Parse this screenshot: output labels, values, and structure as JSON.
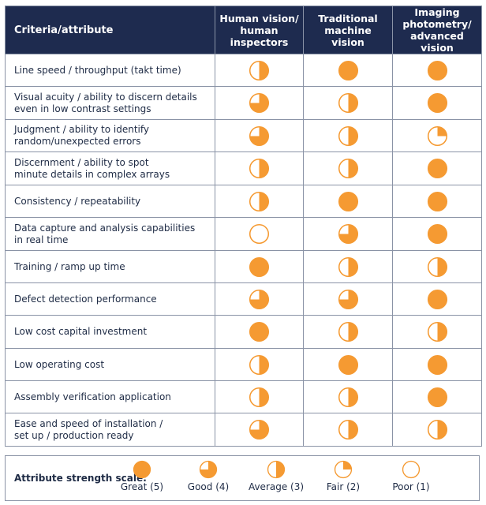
{
  "chart_data": {
    "type": "table",
    "header": {
      "criteria": "Criteria/attribute",
      "columns": [
        [
          "Human vision/",
          "human",
          "inspectors"
        ],
        [
          "Traditional",
          "machine",
          "vision"
        ],
        [
          "Imaging",
          "photometry/",
          "advanced vision"
        ]
      ]
    },
    "rows": [
      {
        "criteria": [
          "Line speed / throughput (takt time)"
        ],
        "scores": [
          3,
          5,
          5
        ]
      },
      {
        "criteria": [
          "Visual acuity / ability to discern details",
          "even in low contrast settings"
        ],
        "scores": [
          4,
          3,
          5
        ]
      },
      {
        "criteria": [
          "Judgment / ability to identify",
          "random/unexpected errors"
        ],
        "scores": [
          4,
          3,
          2
        ]
      },
      {
        "criteria": [
          "Discernment / ability to spot",
          "minute details in complex arrays"
        ],
        "scores": [
          3,
          3,
          5
        ]
      },
      {
        "criteria": [
          "Consistency / repeatability"
        ],
        "scores": [
          3,
          5,
          5
        ]
      },
      {
        "criteria": [
          "Data capture and analysis capabilities",
          "in real time"
        ],
        "scores": [
          1,
          4,
          5
        ]
      },
      {
        "criteria": [
          "Training / ramp up time"
        ],
        "scores": [
          5,
          3,
          3
        ]
      },
      {
        "criteria": [
          "Defect detection performance"
        ],
        "scores": [
          4,
          4,
          5
        ]
      },
      {
        "criteria": [
          "Low cost capital investment"
        ],
        "scores": [
          5,
          3,
          3
        ]
      },
      {
        "criteria": [
          "Low operating cost"
        ],
        "scores": [
          3,
          5,
          5
        ]
      },
      {
        "criteria": [
          "Assembly verification application"
        ],
        "scores": [
          3,
          3,
          5
        ]
      },
      {
        "criteria": [
          "Ease and speed of installation /",
          "set up / production ready"
        ],
        "scores": [
          4,
          3,
          3
        ]
      }
    ],
    "legend": {
      "title": "Attribute strength scale:",
      "items": [
        {
          "label": "Great (5)",
          "score": 5
        },
        {
          "label": "Good (4)",
          "score": 4
        },
        {
          "label": "Average (3)",
          "score": 3
        },
        {
          "label": "Fair (2)",
          "score": 2
        },
        {
          "label": "Poor (1)",
          "score": 1
        }
      ]
    },
    "colors": {
      "fill": "#f59a32",
      "header": "#1e2b4f",
      "border": "#8a93a6"
    }
  }
}
